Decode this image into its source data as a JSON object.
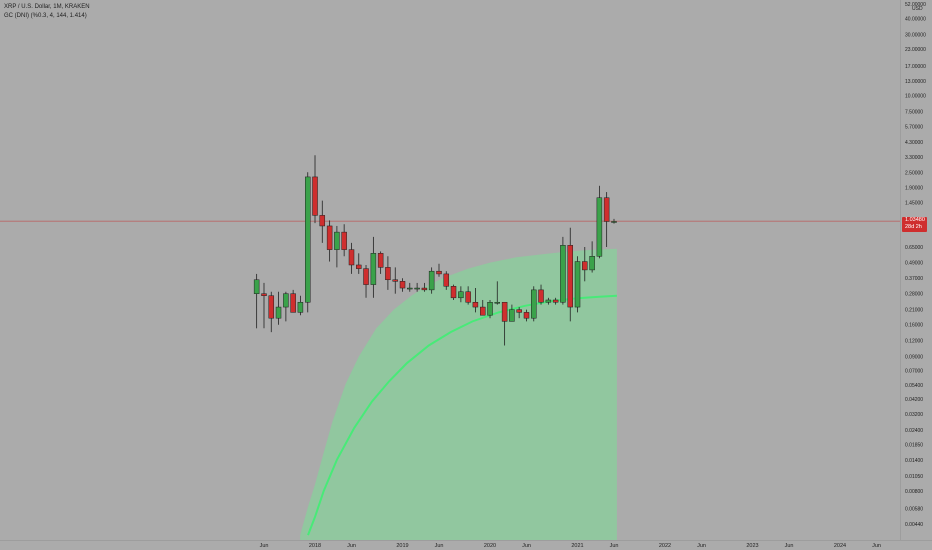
{
  "header": {
    "symbol_line": "XRP / U.S. Dollar, 1M, KRAKEN",
    "indicator_line": "GC (DNI) (%0.3, 4, 144, 1.414)"
  },
  "price_tag": {
    "value": "1.03480",
    "countdown": "28d 2h"
  },
  "colors": {
    "background": "#ababab",
    "up": "#3aa24a",
    "down": "#cf2e2e",
    "band_fill": "#8ccb9c",
    "curve": "#48ea78",
    "last_price_line": "#c24a4a"
  },
  "chart_data": {
    "type": "candlestick",
    "scale": "log",
    "y_unit_label": "USD",
    "x_tick_labels": [
      {
        "label": "Jun",
        "t": 2017.417
      },
      {
        "label": "2018",
        "t": 2018.0
      },
      {
        "label": "Jun",
        "t": 2018.417
      },
      {
        "label": "2019",
        "t": 2019.0
      },
      {
        "label": "Jun",
        "t": 2019.417
      },
      {
        "label": "2020",
        "t": 2020.0
      },
      {
        "label": "Jun",
        "t": 2020.417
      },
      {
        "label": "2021",
        "t": 2021.0
      },
      {
        "label": "Jun",
        "t": 2021.417
      },
      {
        "label": "2022",
        "t": 2022.0
      },
      {
        "label": "Jun",
        "t": 2022.417
      },
      {
        "label": "2023",
        "t": 2023.0
      },
      {
        "label": "Jun",
        "t": 2023.417
      },
      {
        "label": "2024",
        "t": 2024.0
      },
      {
        "label": "Jun",
        "t": 2024.417
      }
    ],
    "y_tick_labels": [
      "52.00000",
      "40.00000",
      "30.00000",
      "23.00000",
      "17.00000",
      "13.00000",
      "10.00000",
      "7.50000",
      "5.70000",
      "4.30000",
      "3.30000",
      "2.50000",
      "1.90000",
      "1.45000",
      "0.65000",
      "0.49000",
      "0.37000",
      "0.28000",
      "0.21000",
      "0.16000",
      "0.12000",
      "0.09000",
      "0.07000",
      "0.05400",
      "0.04200",
      "0.03200",
      "0.02400",
      "0.01850",
      "0.01400",
      "0.01050",
      "0.00800",
      "0.00580",
      "0.00440"
    ],
    "y_tick_values": [
      52,
      40,
      30,
      23,
      17,
      13,
      10,
      7.5,
      5.7,
      4.3,
      3.3,
      2.5,
      1.9,
      1.45,
      0.65,
      0.49,
      0.37,
      0.28,
      0.21,
      0.16,
      0.12,
      0.09,
      0.07,
      0.054,
      0.042,
      0.032,
      0.024,
      0.0185,
      0.014,
      0.0105,
      0.008,
      0.0058,
      0.0044
    ],
    "ylim": [
      0.0038,
      60
    ],
    "candles": [
      {
        "t": 2017.333,
        "o": 0.28,
        "h": 0.4,
        "l": 0.15,
        "c": 0.36
      },
      {
        "t": 2017.417,
        "o": 0.28,
        "h": 0.34,
        "l": 0.15,
        "c": 0.27
      },
      {
        "t": 2017.5,
        "o": 0.27,
        "h": 0.29,
        "l": 0.14,
        "c": 0.18
      },
      {
        "t": 2017.583,
        "o": 0.18,
        "h": 0.29,
        "l": 0.16,
        "c": 0.22
      },
      {
        "t": 2017.667,
        "o": 0.22,
        "h": 0.29,
        "l": 0.17,
        "c": 0.28
      },
      {
        "t": 2017.75,
        "o": 0.28,
        "h": 0.3,
        "l": 0.2,
        "c": 0.2
      },
      {
        "t": 2017.833,
        "o": 0.2,
        "h": 0.27,
        "l": 0.19,
        "c": 0.24
      },
      {
        "t": 2017.917,
        "o": 0.24,
        "h": 2.5,
        "l": 0.2,
        "c": 2.3
      },
      {
        "t": 2018.0,
        "o": 2.3,
        "h": 3.4,
        "l": 1.0,
        "c": 1.15
      },
      {
        "t": 2018.083,
        "o": 1.15,
        "h": 1.5,
        "l": 0.7,
        "c": 0.95
      },
      {
        "t": 2018.167,
        "o": 0.95,
        "h": 1.05,
        "l": 0.5,
        "c": 0.62
      },
      {
        "t": 2018.25,
        "o": 0.62,
        "h": 0.95,
        "l": 0.45,
        "c": 0.85
      },
      {
        "t": 2018.333,
        "o": 0.85,
        "h": 0.98,
        "l": 0.55,
        "c": 0.62
      },
      {
        "t": 2018.417,
        "o": 0.62,
        "h": 0.7,
        "l": 0.4,
        "c": 0.47
      },
      {
        "t": 2018.5,
        "o": 0.47,
        "h": 0.58,
        "l": 0.4,
        "c": 0.44
      },
      {
        "t": 2018.583,
        "o": 0.44,
        "h": 0.47,
        "l": 0.26,
        "c": 0.33
      },
      {
        "t": 2018.667,
        "o": 0.33,
        "h": 0.78,
        "l": 0.26,
        "c": 0.58
      },
      {
        "t": 2018.75,
        "o": 0.58,
        "h": 0.6,
        "l": 0.4,
        "c": 0.45
      },
      {
        "t": 2018.833,
        "o": 0.45,
        "h": 0.55,
        "l": 0.3,
        "c": 0.36
      },
      {
        "t": 2018.917,
        "o": 0.36,
        "h": 0.45,
        "l": 0.28,
        "c": 0.35
      },
      {
        "t": 2019.0,
        "o": 0.35,
        "h": 0.37,
        "l": 0.29,
        "c": 0.31
      },
      {
        "t": 2019.083,
        "o": 0.31,
        "h": 0.34,
        "l": 0.29,
        "c": 0.31
      },
      {
        "t": 2019.167,
        "o": 0.31,
        "h": 0.34,
        "l": 0.29,
        "c": 0.31
      },
      {
        "t": 2019.25,
        "o": 0.31,
        "h": 0.34,
        "l": 0.29,
        "c": 0.3
      },
      {
        "t": 2019.333,
        "o": 0.3,
        "h": 0.45,
        "l": 0.28,
        "c": 0.42
      },
      {
        "t": 2019.417,
        "o": 0.42,
        "h": 0.48,
        "l": 0.38,
        "c": 0.4
      },
      {
        "t": 2019.5,
        "o": 0.4,
        "h": 0.42,
        "l": 0.3,
        "c": 0.32
      },
      {
        "t": 2019.583,
        "o": 0.32,
        "h": 0.33,
        "l": 0.25,
        "c": 0.26
      },
      {
        "t": 2019.667,
        "o": 0.26,
        "h": 0.32,
        "l": 0.24,
        "c": 0.29
      },
      {
        "t": 2019.75,
        "o": 0.29,
        "h": 0.32,
        "l": 0.23,
        "c": 0.24
      },
      {
        "t": 2019.833,
        "o": 0.24,
        "h": 0.31,
        "l": 0.2,
        "c": 0.22
      },
      {
        "t": 2019.917,
        "o": 0.22,
        "h": 0.25,
        "l": 0.19,
        "c": 0.19
      },
      {
        "t": 2020.0,
        "o": 0.19,
        "h": 0.25,
        "l": 0.18,
        "c": 0.24
      },
      {
        "t": 2020.083,
        "o": 0.24,
        "h": 0.35,
        "l": 0.23,
        "c": 0.24
      },
      {
        "t": 2020.167,
        "o": 0.24,
        "h": 0.24,
        "l": 0.11,
        "c": 0.17
      },
      {
        "t": 2020.25,
        "o": 0.17,
        "h": 0.23,
        "l": 0.17,
        "c": 0.21
      },
      {
        "t": 2020.333,
        "o": 0.21,
        "h": 0.22,
        "l": 0.18,
        "c": 0.2
      },
      {
        "t": 2020.417,
        "o": 0.2,
        "h": 0.21,
        "l": 0.17,
        "c": 0.18
      },
      {
        "t": 2020.5,
        "o": 0.18,
        "h": 0.32,
        "l": 0.17,
        "c": 0.3
      },
      {
        "t": 2020.583,
        "o": 0.3,
        "h": 0.33,
        "l": 0.23,
        "c": 0.24
      },
      {
        "t": 2020.667,
        "o": 0.24,
        "h": 0.26,
        "l": 0.23,
        "c": 0.25
      },
      {
        "t": 2020.75,
        "o": 0.25,
        "h": 0.26,
        "l": 0.23,
        "c": 0.24
      },
      {
        "t": 2020.833,
        "o": 0.24,
        "h": 0.78,
        "l": 0.23,
        "c": 0.67
      },
      {
        "t": 2020.917,
        "o": 0.67,
        "h": 0.92,
        "l": 0.17,
        "c": 0.22
      },
      {
        "t": 2021.0,
        "o": 0.22,
        "h": 0.55,
        "l": 0.2,
        "c": 0.5
      },
      {
        "t": 2021.083,
        "o": 0.5,
        "h": 0.65,
        "l": 0.35,
        "c": 0.43
      },
      {
        "t": 2021.167,
        "o": 0.43,
        "h": 0.72,
        "l": 0.41,
        "c": 0.55
      },
      {
        "t": 2021.25,
        "o": 0.55,
        "h": 1.96,
        "l": 0.53,
        "c": 1.58
      },
      {
        "t": 2021.333,
        "o": 1.58,
        "h": 1.75,
        "l": 0.65,
        "c": 1.03
      },
      {
        "t": 2021.417,
        "o": 1.03,
        "h": 1.08,
        "l": 0.99,
        "c": 1.03
      }
    ],
    "last_price": 1.0348,
    "band": {
      "points": [
        {
          "t": 2017.83,
          "low": 0.0036,
          "high": 0.0036
        },
        {
          "t": 2017.92,
          "low": 0.0045,
          "high": 0.006
        },
        {
          "t": 2018.0,
          "low": 0.006,
          "high": 0.009
        },
        {
          "t": 2018.1,
          "low": 0.009,
          "high": 0.016
        },
        {
          "t": 2018.2,
          "low": 0.014,
          "high": 0.028
        },
        {
          "t": 2018.35,
          "low": 0.023,
          "high": 0.055
        },
        {
          "t": 2018.5,
          "low": 0.036,
          "high": 0.09
        },
        {
          "t": 2018.7,
          "low": 0.055,
          "high": 0.15
        },
        {
          "t": 2018.9,
          "low": 0.075,
          "high": 0.21
        },
        {
          "t": 2019.1,
          "low": 0.095,
          "high": 0.27
        },
        {
          "t": 2019.3,
          "low": 0.115,
          "high": 0.33
        },
        {
          "t": 2019.5,
          "low": 0.13,
          "high": 0.38
        },
        {
          "t": 2019.75,
          "low": 0.15,
          "high": 0.44
        },
        {
          "t": 2020.0,
          "low": 0.165,
          "high": 0.49
        },
        {
          "t": 2020.3,
          "low": 0.18,
          "high": 0.54
        },
        {
          "t": 2020.6,
          "low": 0.19,
          "high": 0.57
        },
        {
          "t": 2020.9,
          "low": 0.2,
          "high": 0.6
        },
        {
          "t": 2021.2,
          "low": 0.21,
          "high": 0.62
        },
        {
          "t": 2021.45,
          "low": 0.215,
          "high": 0.63
        }
      ]
    },
    "curve": {
      "points": [
        {
          "t": 2017.92,
          "v": 0.0036
        },
        {
          "t": 2018.0,
          "v": 0.005
        },
        {
          "t": 2018.1,
          "v": 0.008
        },
        {
          "t": 2018.25,
          "v": 0.014
        },
        {
          "t": 2018.45,
          "v": 0.025
        },
        {
          "t": 2018.65,
          "v": 0.04
        },
        {
          "t": 2018.85,
          "v": 0.058
        },
        {
          "t": 2019.05,
          "v": 0.08
        },
        {
          "t": 2019.3,
          "v": 0.11
        },
        {
          "t": 2019.55,
          "v": 0.14
        },
        {
          "t": 2019.8,
          "v": 0.17
        },
        {
          "t": 2020.1,
          "v": 0.2
        },
        {
          "t": 2020.4,
          "v": 0.225
        },
        {
          "t": 2020.7,
          "v": 0.245
        },
        {
          "t": 2021.0,
          "v": 0.258
        },
        {
          "t": 2021.25,
          "v": 0.265
        },
        {
          "t": 2021.45,
          "v": 0.27
        }
      ]
    }
  }
}
